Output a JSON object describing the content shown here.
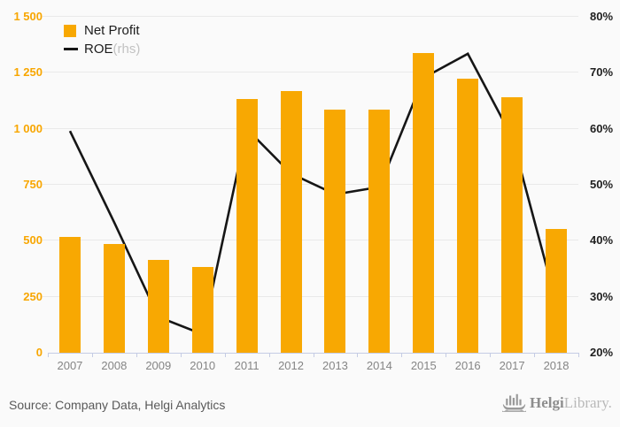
{
  "legend": {
    "net_profit_label": "Net Profit",
    "roe_label": "ROE",
    "roe_suffix": " (rhs)"
  },
  "footer": {
    "source_text": "Source: Company Data, Helgi Analytics",
    "logo_strong": "Helgi",
    "logo_light": "Library."
  },
  "icons": {
    "logo_ship_icon": "viking-ship-bar-chart"
  },
  "colors": {
    "bar": "#F8A802",
    "line": "#161616",
    "grid": "#e9e9e9",
    "axis": "#c5cce4",
    "left_axis_text": "#F8A600",
    "right_axis_text": "#1f1f1f",
    "year_text": "#858585",
    "legend_suffix_text": "#c2c2c2",
    "background": "#fafafa"
  },
  "chart_data": {
    "type": "bar",
    "title": "",
    "categories": [
      "2007",
      "2008",
      "2009",
      "2010",
      "2011",
      "2012",
      "2013",
      "2014",
      "2015",
      "2016",
      "2017",
      "2018"
    ],
    "series": [
      {
        "name": "Net Profit",
        "mark": "bar",
        "axis": "left",
        "values": [
          516,
          487,
          413,
          384,
          1133,
          1170,
          1086,
          1086,
          1338,
          1222,
          1141,
          551
        ]
      },
      {
        "name": "ROE",
        "mark": "line",
        "axis": "right",
        "values": [
          59.6,
          43.3,
          26.4,
          23.3,
          60.0,
          52.0,
          48.3,
          49.6,
          69.1,
          73.4,
          58.5,
          28.9
        ]
      }
    ],
    "left_axis": {
      "min": 0,
      "max": 1500,
      "step": 250,
      "tick_labels": [
        "0",
        "250",
        "500",
        "750",
        "1 000",
        "1 250",
        "1 500"
      ]
    },
    "right_axis": {
      "min": 20,
      "max": 80,
      "step": 10,
      "tick_labels": [
        "20%",
        "30%",
        "40%",
        "50%",
        "60%",
        "70%",
        "80%"
      ]
    },
    "grid": true,
    "legend_position": "top-left"
  }
}
